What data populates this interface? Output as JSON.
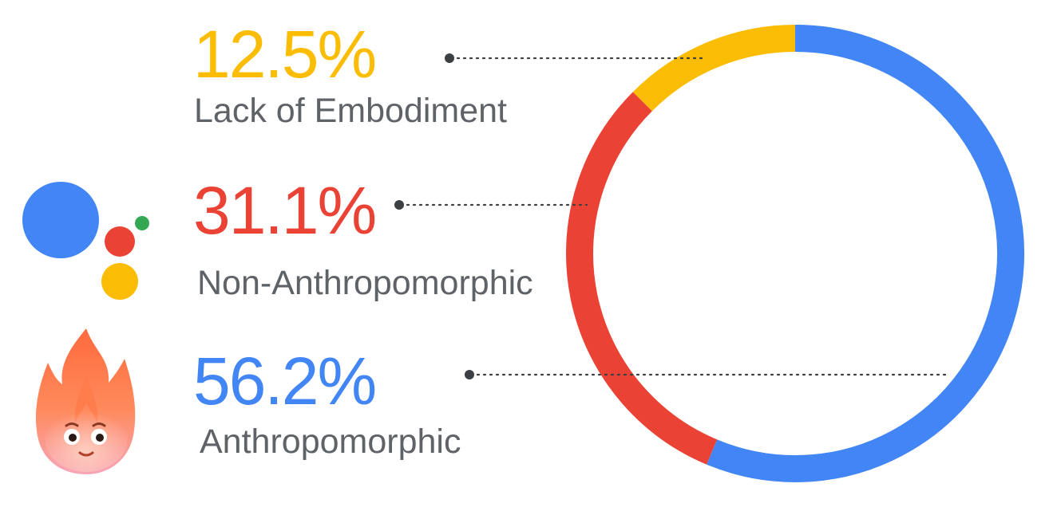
{
  "chart_data": {
    "type": "pie",
    "style": "donut",
    "title": "",
    "legend": "left",
    "categories": [
      "Lack of Embodiment",
      "Non-Anthropomorphic",
      "Anthropomorphic"
    ],
    "values": [
      12.5,
      31.1,
      56.2
    ],
    "value_labels": [
      "12.5%",
      "31.1%",
      "56.2%"
    ],
    "colors": [
      "#FBBC04",
      "#EA4335",
      "#4285F4"
    ]
  },
  "icons": {
    "assistant": "google-assistant-dots-icon",
    "character": "fire-character-avatar-icon"
  }
}
